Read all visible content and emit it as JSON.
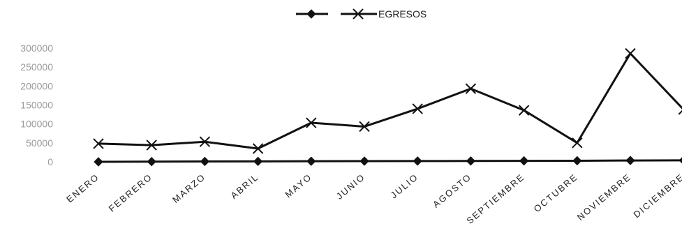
{
  "chart_data": {
    "type": "line",
    "categories": [
      "ENERO",
      "FEBRERO",
      "MARZO",
      "ABRIL",
      "MAYO",
      "JUNIO",
      "JULIO",
      "AGOSTO",
      "SEPTIEMBRE",
      "OCTUBRE",
      "NOVIEMBRE",
      "DICIEMBRE"
    ],
    "series": [
      {
        "name": "",
        "marker": "diamond",
        "values": [
          0,
          500,
          1000,
          1200,
          1500,
          1800,
          2000,
          2200,
          2500,
          2800,
          3500,
          4000
        ]
      },
      {
        "name": "EGRESOS",
        "marker": "x",
        "values": [
          48000,
          44000,
          53000,
          35000,
          103000,
          93000,
          140000,
          193000,
          136000,
          50000,
          286000,
          138000
        ]
      }
    ],
    "yticks": [
      "300000",
      "250000",
      "200000",
      "150000",
      "100000",
      "50000",
      "0"
    ],
    "ylim": [
      0,
      300000
    ],
    "title": "",
    "xlabel": "",
    "ylabel": "",
    "grid": false,
    "legend_position": "top",
    "line_color": "#111111"
  }
}
